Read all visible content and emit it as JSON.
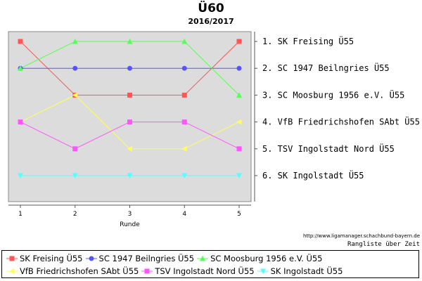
{
  "title": "Ü60",
  "subtitle": "2016/2017",
  "source": "http://www.ligamanager.schachbund-bayern.de",
  "caption": "Rangliste über Zeit",
  "chart_data": {
    "type": "line",
    "title": "Ü60",
    "subtitle": "2016/2017",
    "xlabel": "Runde",
    "ylabel": "",
    "x": [
      1,
      2,
      3,
      4,
      5
    ],
    "xlim": [
      1,
      5
    ],
    "ylim": [
      1,
      6
    ],
    "y_inverted": true,
    "grid": false,
    "legend_position": "bottom",
    "rank_labels": [
      "1.  SK Freising Ü55",
      "2.  SC 1947 Beilngries Ü55",
      "3.  SC Moosburg 1956 e.V. Ü55",
      "4.  VfB Friedrichshofen SAbt Ü55",
      "5.  TSV Ingolstadt Nord Ü55",
      "6.  SK Ingolstadt Ü55"
    ],
    "series": [
      {
        "name": "SK Freising Ü55",
        "values": [
          1,
          3,
          3,
          3,
          1
        ],
        "color": "#ff5555",
        "marker": "square"
      },
      {
        "name": "SC 1947 Beilngries Ü55",
        "values": [
          2,
          2,
          2,
          2,
          2
        ],
        "color": "#5555ff",
        "marker": "circle"
      },
      {
        "name": "SC Moosburg 1956 e.V. Ü55",
        "values": [
          2,
          1,
          1,
          1,
          3
        ],
        "color": "#55ff55",
        "marker": "triangle-up"
      },
      {
        "name": "VfB Friedrichshofen SAbt Ü55",
        "values": [
          4,
          3,
          5,
          5,
          4
        ],
        "color": "#ffff55",
        "marker": "triangle-left"
      },
      {
        "name": "TSV Ingolstadt Nord Ü55",
        "values": [
          4,
          5,
          4,
          4,
          5
        ],
        "color": "#ff55ff",
        "marker": "square"
      },
      {
        "name": "SK Ingolstadt Ü55",
        "values": [
          6,
          6,
          6,
          6,
          6
        ],
        "color": "#55ffff",
        "marker": "triangle-down"
      }
    ]
  }
}
